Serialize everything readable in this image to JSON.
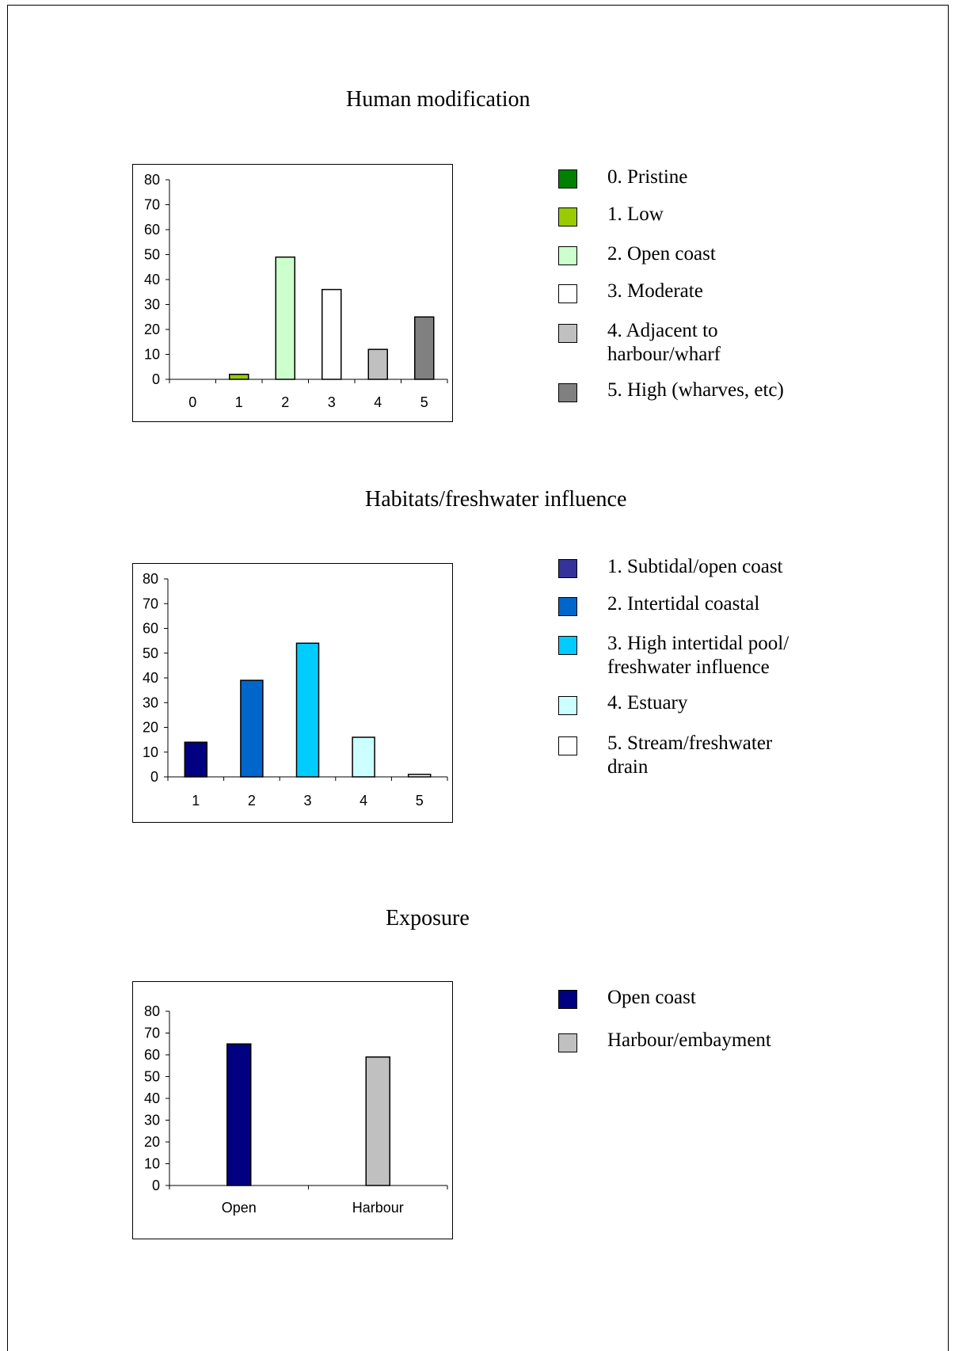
{
  "chart_data": [
    {
      "type": "bar",
      "title": "Human modification",
      "categories": [
        "0",
        "1",
        "2",
        "3",
        "4",
        "5"
      ],
      "values": [
        0,
        2,
        49,
        36,
        12,
        25
      ],
      "colors": [
        "#008000",
        "#99CC00",
        "#CCFFCC",
        "#FFFFFF",
        "#C0C0C0",
        "#808080"
      ],
      "ylim": [
        0,
        80
      ],
      "yticks": [
        "0",
        "10",
        "20",
        "30",
        "40",
        "50",
        "60",
        "70",
        "80"
      ],
      "legend": [
        "0. Pristine",
        "1. Low",
        "2. Open coast",
        "3. Moderate",
        "4. Adjacent to\nharbour/wharf",
        "5. High (wharves, etc)"
      ],
      "legend_position": "right"
    },
    {
      "type": "bar",
      "title": "Habitats/freshwater influence",
      "categories": [
        "1",
        "2",
        "3",
        "4",
        "5"
      ],
      "values": [
        14,
        39,
        54,
        16,
        1
      ],
      "colors": [
        "#000080",
        "#0066CC",
        "#00CCFF",
        "#CCFFFF",
        "#FFFFFF"
      ],
      "legend_colors": [
        "#333399",
        "#0066CC",
        "#00CCFF",
        "#CCFFFF",
        "#FFFFFF"
      ],
      "ylim": [
        0,
        80
      ],
      "yticks": [
        "0",
        "10",
        "20",
        "30",
        "40",
        "50",
        "60",
        "70",
        "80"
      ],
      "legend": [
        "1. Subtidal/open coast",
        "2. Intertidal coastal",
        "3. High intertidal pool/\nfreshwater influence",
        "4. Estuary",
        "5. Stream/freshwater\ndrain"
      ],
      "legend_position": "right"
    },
    {
      "type": "bar",
      "title": "Exposure",
      "categories": [
        "Open",
        "Harbour"
      ],
      "values": [
        65,
        59
      ],
      "colors": [
        "#000080",
        "#C0C0C0"
      ],
      "ylim": [
        0,
        80
      ],
      "yticks": [
        "0",
        "10",
        "20",
        "30",
        "40",
        "50",
        "60",
        "70",
        "80"
      ],
      "legend": [
        "Open coast",
        "Harbour/embayment"
      ],
      "legend_position": "right"
    }
  ]
}
